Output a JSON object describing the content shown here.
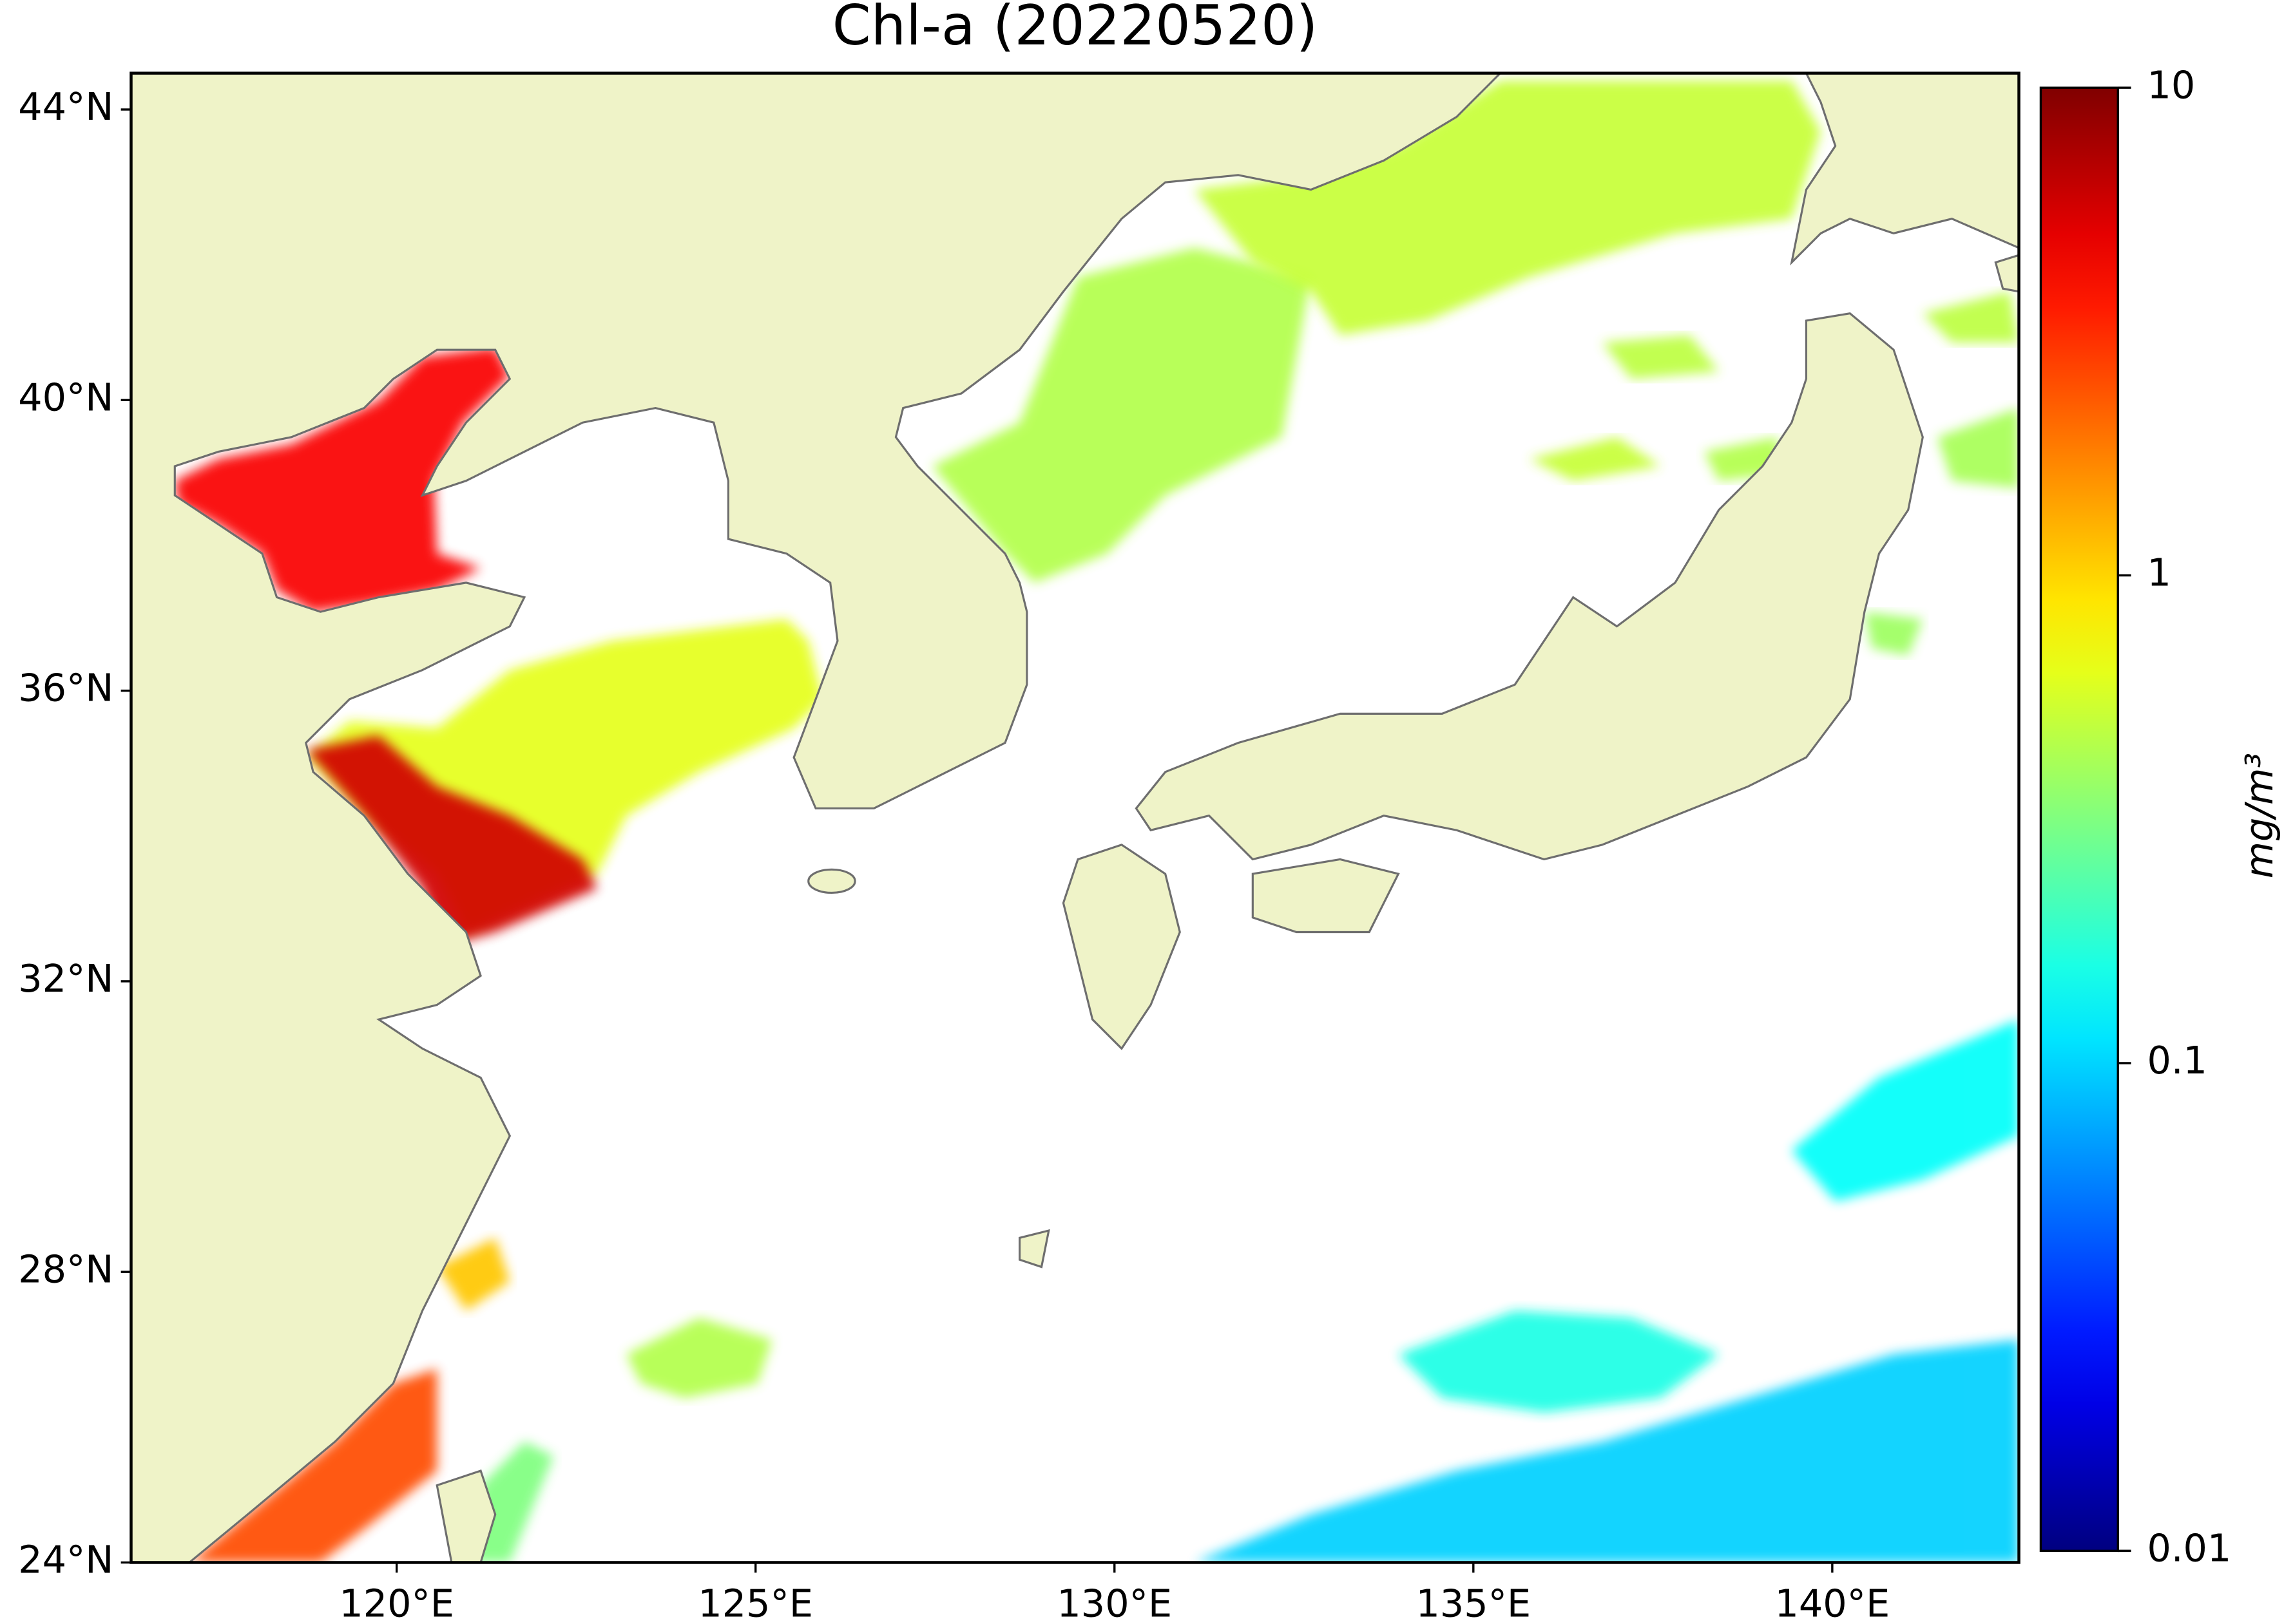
{
  "title": "Chl-a (20220520)",
  "map": {
    "xlim": [
      116.3,
      142.6
    ],
    "ylim": [
      24,
      44.5
    ],
    "xticks": [
      {
        "value": 120,
        "label": "120°E"
      },
      {
        "value": 125,
        "label": "125°E"
      },
      {
        "value": 130,
        "label": "130°E"
      },
      {
        "value": 135,
        "label": "135°E"
      },
      {
        "value": 140,
        "label": "140°E"
      }
    ],
    "yticks": [
      {
        "value": 24,
        "label": "24°N"
      },
      {
        "value": 28,
        "label": "28°N"
      },
      {
        "value": 32,
        "label": "32°N"
      },
      {
        "value": 36,
        "label": "36°N"
      },
      {
        "value": 40,
        "label": "40°N"
      },
      {
        "value": 44,
        "label": "44°N"
      }
    ]
  },
  "colorbar": {
    "label": "mg/m³",
    "scale": "log",
    "colormap": "jet",
    "lim": [
      0.01,
      10
    ],
    "ticks": [
      0.01,
      0.1,
      1,
      10
    ]
  }
}
